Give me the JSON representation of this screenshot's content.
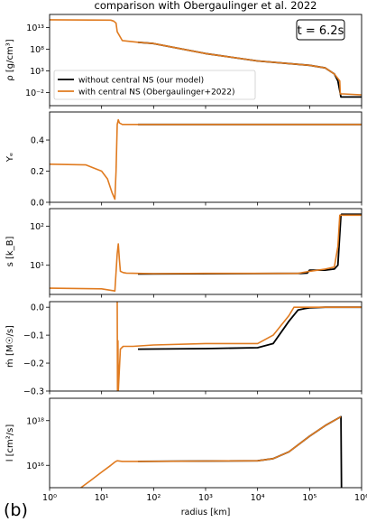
{
  "figure": {
    "title": "comparison with Obergaulinger et al. 2022",
    "panel_label": "(b)",
    "time_box": "t = 6.2s",
    "colors": {
      "our_model": "#000000",
      "obergaulinger": "#e07b20"
    }
  },
  "chart_data": [
    {
      "type": "line",
      "ylabel": "ρ [g/cm³]",
      "yscale": "log",
      "ylim": [
        1e-05,
        1e+16
      ],
      "yticks": [
        {
          "v": 10000000000000.0,
          "t": "10¹³"
        },
        {
          "v": 100000000.0,
          "t": "10⁸"
        },
        {
          "v": 1000.0,
          "t": "10³"
        },
        {
          "v": 0.01,
          "t": "10⁻²"
        }
      ],
      "legend": {
        "placement": "lower-left",
        "entries": [
          "without central NS (our model)",
          "with central NS (Obergaulinger+2022)"
        ]
      },
      "series": [
        {
          "name": "without central NS (our model)",
          "color": "#000000",
          "x": [
            50,
            100,
            1000,
            10000,
            100000,
            200000,
            300000,
            350000,
            400000,
            420000,
            450000,
            1000000
          ],
          "y": [
            4000000000.0,
            2000000000.0,
            10000000.0,
            200000.0,
            20000.0,
            5000.0,
            200,
            5,
            0.001,
            0.001,
            0.001,
            0.001
          ]
        },
        {
          "name": "with central NS (Obergaulinger+2022)",
          "color": "#e07b20",
          "x": [
            1,
            15,
            17,
            19,
            20,
            25,
            50,
            100,
            1000,
            10000,
            100000,
            200000,
            300000,
            380000,
            390000,
            450000,
            1000000
          ],
          "y": [
            600000000000000.0,
            500000000000000.0,
            300000000000000.0,
            100000000000000.0,
            1000000000000.0,
            10000000000.0,
            4000000000.0,
            2000000000.0,
            10000000.0,
            200000.0,
            20000.0,
            5000.0,
            200,
            5,
            0.005,
            0.005,
            0.003
          ]
        }
      ]
    },
    {
      "type": "line",
      "ylabel": "Yₑ",
      "yscale": "linear",
      "ylim": [
        0,
        0.58
      ],
      "yticks": [
        {
          "v": 0,
          "t": "0.0"
        },
        {
          "v": 0.2,
          "t": "0.2"
        },
        {
          "v": 0.4,
          "t": "0.4"
        }
      ],
      "series": [
        {
          "name": "",
          "color": "#000000",
          "x": [
            50,
            1000000
          ],
          "y": [
            0.5,
            0.5
          ]
        },
        {
          "name": "",
          "color": "#e07b20",
          "x": [
            1,
            5,
            10,
            13,
            16,
            18,
            19,
            20,
            21,
            22,
            25,
            50,
            1000000
          ],
          "y": [
            0.245,
            0.24,
            0.2,
            0.15,
            0.06,
            0.02,
            0.2,
            0.5,
            0.53,
            0.51,
            0.5,
            0.5,
            0.5
          ]
        }
      ]
    },
    {
      "type": "line",
      "ylabel": "s [k_B]",
      "yscale": "log",
      "ylim": [
        1.8,
        280
      ],
      "yticks": [
        {
          "v": 100,
          "t": "10²"
        },
        {
          "v": 10,
          "t": "10¹"
        }
      ],
      "series": [
        {
          "name": "",
          "color": "#000000",
          "x": [
            50,
            70000,
            90000,
            100000,
            200000,
            300000,
            350000,
            400000,
            410000,
            1000000
          ],
          "y": [
            6,
            6.2,
            6.3,
            7.5,
            7.5,
            8,
            10,
            190,
            200,
            200
          ]
        },
        {
          "name": "",
          "color": "#e07b20",
          "x": [
            1,
            10,
            15,
            18,
            20,
            21,
            22,
            23,
            26,
            30,
            50,
            100,
            1000,
            10000,
            60000,
            100000,
            200000,
            300000,
            350000,
            380000,
            420000,
            1000000
          ],
          "y": [
            2.6,
            2.5,
            2.3,
            2.2,
            20,
            35,
            14,
            7,
            6.5,
            6.3,
            6.2,
            6.1,
            6.2,
            6.2,
            6.2,
            7,
            8,
            9,
            30,
            190,
            190,
            190
          ]
        }
      ]
    },
    {
      "type": "line",
      "ylabel": "ṁ [M☉/s]",
      "yscale": "linear",
      "ylim": [
        -0.3,
        0.02
      ],
      "yticks": [
        {
          "v": 0,
          "t": "0.0"
        },
        {
          "v": -0.1,
          "t": "−0.1"
        },
        {
          "v": -0.2,
          "t": "−0.2"
        },
        {
          "v": -0.3,
          "t": "−0.3"
        }
      ],
      "series": [
        {
          "name": "",
          "color": "#000000",
          "x": [
            50,
            1000,
            10000,
            20000,
            40000,
            60000,
            80000,
            100000,
            200000,
            1000000
          ],
          "y": [
            -0.15,
            -0.148,
            -0.145,
            -0.13,
            -0.05,
            -0.01,
            -0.005,
            -0.002,
            0,
            0
          ]
        },
        {
          "name": "",
          "color": "#e07b20",
          "x": [
            20,
            20.2,
            20.6,
            21,
            23,
            26,
            40,
            100,
            1000,
            10000,
            20000,
            40000,
            50000,
            70000,
            100000,
            1000000
          ],
          "y": [
            0.02,
            -0.3,
            -0.12,
            -0.3,
            -0.15,
            -0.14,
            -0.14,
            -0.135,
            -0.13,
            -0.13,
            -0.1,
            -0.03,
            0,
            0,
            0,
            0
          ]
        }
      ]
    },
    {
      "type": "line",
      "xlabel": "radius [km]",
      "ylabel": "l [cm²/s]",
      "yscale": "log",
      "ylim": [
        1000000000000000.0,
        1e+19
      ],
      "yticks": [
        {
          "v": 1e+18,
          "t": "10¹⁸"
        },
        {
          "v": 1e+16,
          "t": "10¹⁶"
        }
      ],
      "xscale": "log",
      "xlim": [
        1,
        1000000
      ],
      "xticks": [
        {
          "v": 1,
          "t": "10⁰"
        },
        {
          "v": 10,
          "t": "10¹"
        },
        {
          "v": 100,
          "t": "10²"
        },
        {
          "v": 1000,
          "t": "10³"
        },
        {
          "v": 10000,
          "t": "10⁴"
        },
        {
          "v": 100000,
          "t": "10⁵"
        },
        {
          "v": 1000000,
          "t": "10⁶"
        }
      ],
      "series": [
        {
          "name": "",
          "color": "#000000",
          "x": [
            50,
            1000,
            10000,
            20000,
            40000,
            100000,
            200000,
            400000,
            410000,
            420000
          ],
          "y": [
            1.5e+16,
            1.55e+16,
            1.6e+16,
            2e+16,
            4e+16,
            2e+17,
            6e+17,
            1.5e+18,
            1000000000000000.0,
            1000000000000000.0
          ]
        },
        {
          "name": "",
          "color": "#e07b20",
          "x": [
            4,
            6,
            10,
            15,
            18,
            20,
            25,
            50,
            1000,
            10000,
            20000,
            40000,
            100000,
            200000,
            400000
          ],
          "y": [
            1000000000000000.0,
            2000000000000000.0,
            5000000000000000.0,
            1e+16,
            1.4e+16,
            1.6e+16,
            1.5e+16,
            1.5e+16,
            1.55e+16,
            1.6e+16,
            2e+16,
            4e+16,
            2e+17,
            6e+17,
            1.5e+18
          ]
        }
      ]
    }
  ]
}
